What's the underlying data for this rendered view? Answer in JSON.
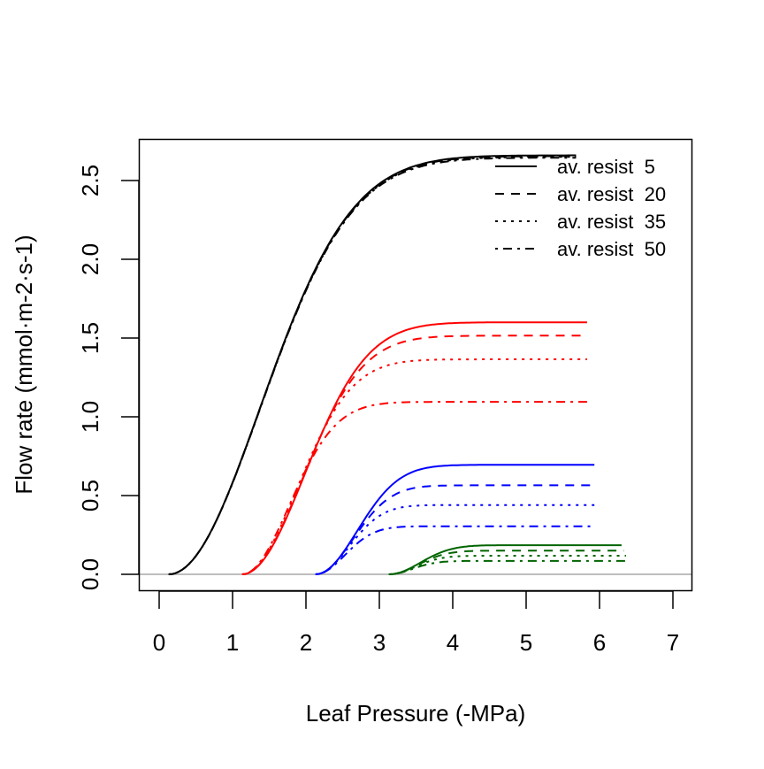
{
  "chart_data": {
    "type": "line",
    "title": "",
    "xlabel": "Leaf Pressure (-MPa)",
    "ylabel": "Flow rate  (mmol·m-2·s-1)",
    "xlim": [
      -0.27,
      7.27
    ],
    "ylim": [
      -0.1,
      2.8
    ],
    "xticks": [
      0,
      1,
      2,
      3,
      4,
      5,
      6,
      7
    ],
    "xtick_labels": [
      "0",
      "1",
      "2",
      "3",
      "4",
      "5",
      "6",
      "7"
    ],
    "yticks": [
      0.0,
      0.5,
      1.0,
      1.5,
      2.0,
      2.5
    ],
    "ytick_labels": [
      "0.0",
      "0.5",
      "1.0",
      "1.5",
      "2.0",
      "2.5"
    ],
    "grid": false,
    "reference_line": {
      "y": 0,
      "color": "#bebebe"
    },
    "legend": {
      "position": "top-right",
      "entries": [
        {
          "label": "av. resist  5",
          "linestyle": "solid"
        },
        {
          "label": "av. resist  20",
          "linestyle": "dashed"
        },
        {
          "label": "av. resist  35",
          "linestyle": "dotted"
        },
        {
          "label": "av. resist  50",
          "linestyle": "dotdash"
        }
      ]
    },
    "series": [
      {
        "name": "group0 resist 5",
        "color": "#000000",
        "linestyle": "solid",
        "x_start": 0.13,
        "x_end": 5.68,
        "plateau": 2.66,
        "shape": 1.75
      },
      {
        "name": "group0 resist 20",
        "color": "#000000",
        "linestyle": "dashed",
        "x_start": 0.13,
        "x_end": 5.68,
        "plateau": 2.655,
        "shape": 1.75
      },
      {
        "name": "group0 resist 35",
        "color": "#000000",
        "linestyle": "dotted",
        "x_start": 0.13,
        "x_end": 5.68,
        "plateau": 2.65,
        "shape": 1.75
      },
      {
        "name": "group0 resist 50",
        "color": "#000000",
        "linestyle": "dotdash",
        "x_start": 0.13,
        "x_end": 5.68,
        "plateau": 2.645,
        "shape": 1.75
      },
      {
        "name": "group1 resist 5",
        "color": "#ff0000",
        "linestyle": "solid",
        "x_start": 1.13,
        "x_end": 5.83,
        "plateau": 1.6,
        "shape": 1.2
      },
      {
        "name": "group1 resist 20",
        "color": "#ff0000",
        "linestyle": "dashed",
        "x_start": 1.13,
        "x_end": 5.83,
        "plateau": 1.515,
        "shape": 1.15
      },
      {
        "name": "group1 resist 35",
        "color": "#ff0000",
        "linestyle": "dotted",
        "x_start": 1.13,
        "x_end": 5.83,
        "plateau": 1.365,
        "shape": 1.05
      },
      {
        "name": "group1 resist 50",
        "color": "#ff0000",
        "linestyle": "dotdash",
        "x_start": 1.13,
        "x_end": 5.83,
        "plateau": 1.095,
        "shape": 0.9
      },
      {
        "name": "group2 resist 5",
        "color": "#0000ff",
        "linestyle": "solid",
        "x_start": 2.13,
        "x_end": 5.93,
        "plateau": 0.695,
        "shape": 0.8
      },
      {
        "name": "group2 resist 20",
        "color": "#0000ff",
        "linestyle": "dashed",
        "x_start": 2.13,
        "x_end": 5.93,
        "plateau": 0.565,
        "shape": 0.72
      },
      {
        "name": "group2 resist 35",
        "color": "#0000ff",
        "linestyle": "dotted",
        "x_start": 2.13,
        "x_end": 5.93,
        "plateau": 0.44,
        "shape": 0.64
      },
      {
        "name": "group2 resist 50",
        "color": "#0000ff",
        "linestyle": "dotdash",
        "x_start": 2.13,
        "x_end": 5.93,
        "plateau": 0.305,
        "shape": 0.56
      },
      {
        "name": "group3 resist 5",
        "color": "#006400",
        "linestyle": "solid",
        "x_start": 3.13,
        "x_end": 6.3,
        "plateau": 0.185,
        "shape": 0.6
      },
      {
        "name": "group3 resist 20",
        "color": "#006400",
        "linestyle": "dashed",
        "x_start": 3.13,
        "x_end": 6.33,
        "plateau": 0.15,
        "shape": 0.55
      },
      {
        "name": "group3 resist 35",
        "color": "#006400",
        "linestyle": "dotted",
        "x_start": 3.13,
        "x_end": 6.36,
        "plateau": 0.118,
        "shape": 0.5
      },
      {
        "name": "group3 resist 50",
        "color": "#006400",
        "linestyle": "dotdash",
        "x_start": 3.13,
        "x_end": 6.39,
        "plateau": 0.085,
        "shape": 0.45
      }
    ]
  }
}
